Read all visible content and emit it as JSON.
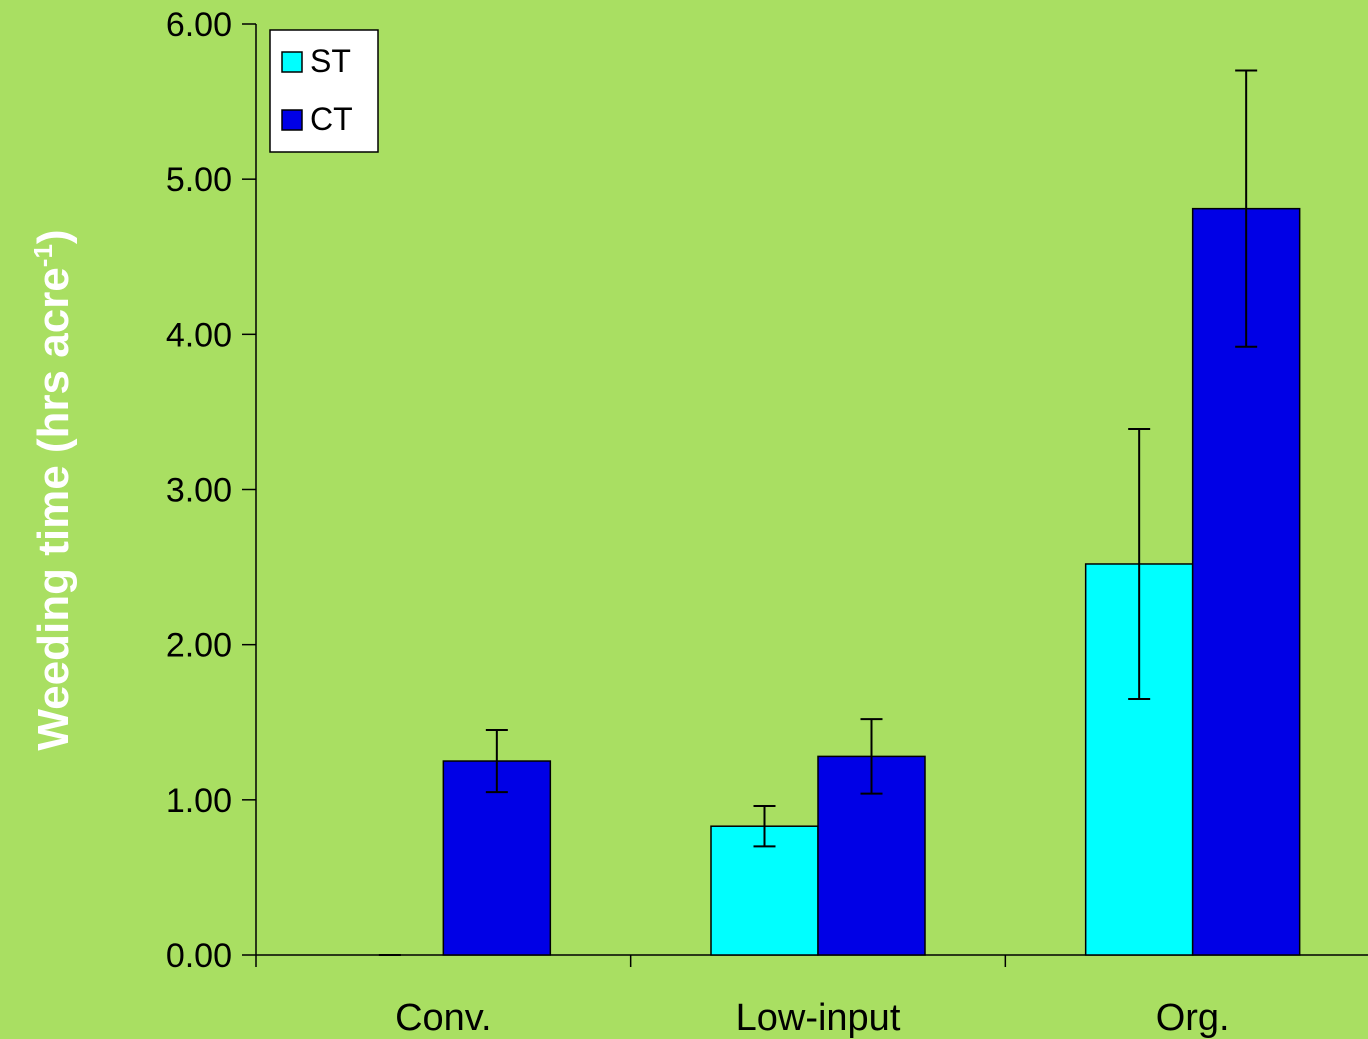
{
  "chart_data": {
    "type": "bar",
    "title": "",
    "xlabel": "",
    "ylabel": "Weeding time (hrs acre",
    "ylabel_sup": "-1",
    "ylabel_close": ")",
    "categories": [
      "Conv.",
      "Low-input",
      "Org."
    ],
    "ylim": [
      0,
      6
    ],
    "yticks": [
      "0.00",
      "1.00",
      "2.00",
      "3.00",
      "4.00",
      "5.00",
      "6.00"
    ],
    "series": [
      {
        "name": "ST",
        "color": "#00FFFF",
        "values": [
          0.0,
          0.83,
          2.52
        ],
        "err": [
          0.0,
          0.13,
          0.87
        ]
      },
      {
        "name": "CT",
        "color": "#0000E6",
        "values": [
          1.25,
          1.28,
          4.81
        ],
        "err": [
          0.2,
          0.24,
          0.89
        ]
      }
    ],
    "grid": false,
    "legend_position": "top-left",
    "background": "#A9DF62"
  }
}
